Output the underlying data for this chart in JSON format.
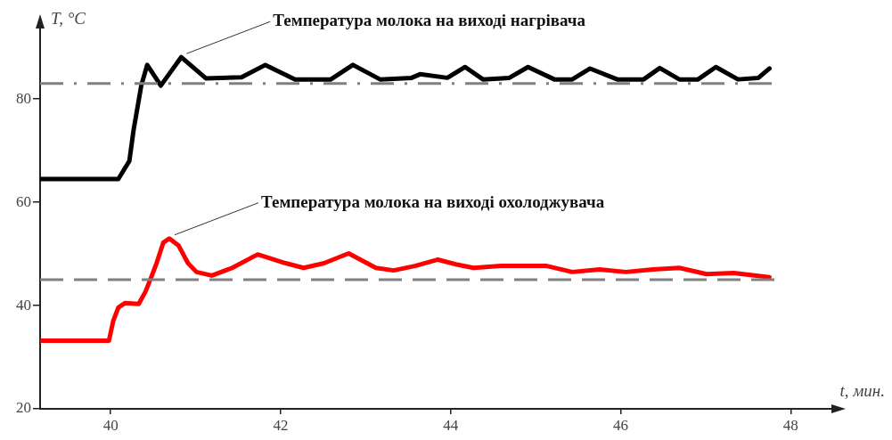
{
  "chart_data": {
    "type": "line",
    "xlabel": "t, мин.",
    "ylabel": "T, °C",
    "xlim": [
      39.17,
      48.5
    ],
    "xticks": [
      40,
      42,
      44,
      46,
      48
    ],
    "ylim": [
      20,
      94
    ],
    "yticks": [
      20,
      40,
      60,
      80
    ],
    "grid": false,
    "legend": false,
    "marker": "none",
    "line_style": "solid",
    "series": [
      {
        "color": "#000000",
        "x": [
          39.17,
          40.09,
          40.22,
          40.27,
          40.36,
          40.43,
          40.59,
          40.83,
          41.12,
          41.54,
          41.82,
          42.17,
          42.59,
          42.85,
          43.17,
          43.54,
          43.64,
          43.96,
          44.17,
          44.38,
          44.69,
          44.91,
          45.22,
          45.43,
          45.64,
          45.96,
          46.27,
          46.46,
          46.69,
          46.91,
          47.12,
          47.38,
          47.62,
          47.75
        ],
        "values": [
          64.5,
          64.5,
          68.0,
          74.0,
          82.6,
          86.6,
          82.6,
          88.1,
          84.0,
          84.2,
          86.6,
          83.8,
          83.8,
          86.6,
          83.8,
          84.1,
          84.8,
          84.1,
          86.2,
          83.8,
          84.1,
          86.2,
          83.8,
          83.8,
          85.9,
          83.8,
          83.8,
          86.0,
          83.8,
          83.8,
          86.2,
          83.8,
          84.1,
          85.9
        ]
      },
      {
        "color": "#ff0000",
        "x": [
          39.17,
          39.98,
          40.03,
          40.09,
          40.17,
          40.33,
          40.41,
          40.48,
          40.54,
          40.62,
          40.69,
          40.8,
          40.91,
          41.01,
          41.19,
          41.43,
          41.73,
          42.06,
          42.27,
          42.51,
          42.8,
          43.12,
          43.33,
          43.59,
          43.85,
          44.06,
          44.27,
          44.59,
          45.12,
          45.43,
          45.75,
          46.06,
          46.38,
          46.69,
          47.01,
          47.33,
          47.75
        ],
        "values": [
          33.2,
          33.2,
          37.0,
          39.6,
          40.5,
          40.3,
          42.7,
          45.6,
          48.2,
          52.2,
          53.0,
          51.6,
          48.2,
          46.5,
          45.8,
          47.3,
          49.9,
          48.2,
          47.3,
          48.2,
          50.1,
          47.3,
          46.8,
          47.7,
          48.9,
          48.0,
          47.3,
          47.7,
          47.7,
          46.5,
          47.0,
          46.5,
          47.0,
          47.3,
          46.1,
          46.3,
          45.5
        ]
      }
    ],
    "annotations": [
      {
        "text": "Температура молока на виході нагрівача",
        "x": 40.83,
        "y": 88.1
      },
      {
        "text": "Температура молока на виході охолоджувача",
        "x": 40.69,
        "y": 53.0
      }
    ],
    "ref_lines": [
      {
        "axis": "y",
        "value": 83,
        "color": "#808080",
        "line_style": "dashdot"
      },
      {
        "axis": "y",
        "value": 45,
        "color": "#808080",
        "line_style": "dashed"
      }
    ]
  }
}
